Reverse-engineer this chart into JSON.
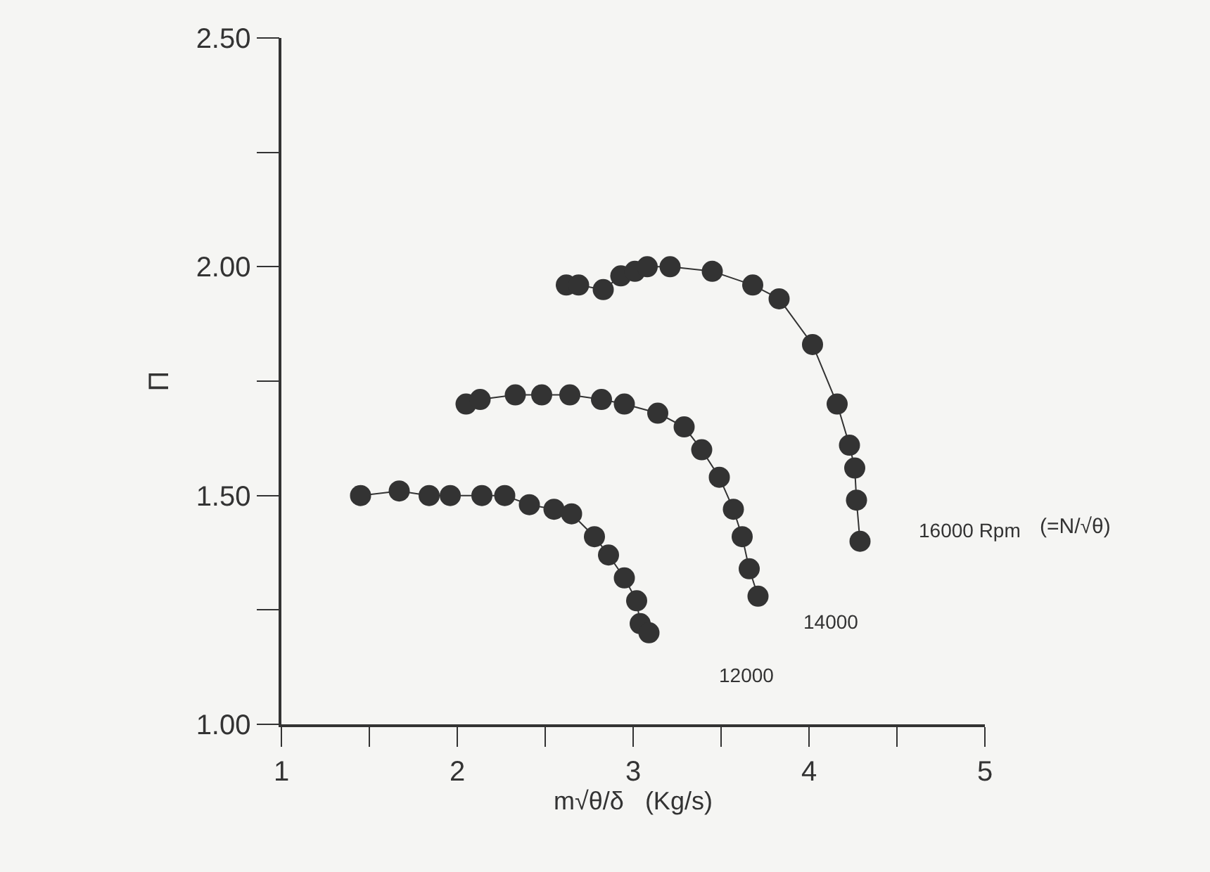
{
  "chart_data": {
    "type": "line",
    "xlabel": "m√θ/δ   (Kg/s)",
    "ylabel": "Π",
    "xlim": [
      1,
      5
    ],
    "ylim": [
      1.0,
      2.5
    ],
    "xticks": [
      1,
      {
        "value": 1.5,
        "label": null
      },
      2,
      {
        "value": 2.5,
        "label": null
      },
      3,
      {
        "value": 3.5,
        "label": null
      },
      4,
      {
        "value": 4.5,
        "label": null
      },
      5
    ],
    "yticks": [
      {
        "value": 1.0,
        "label": "1.00"
      },
      {
        "value": 1.25,
        "label": null
      },
      {
        "value": 1.5,
        "label": "1.50"
      },
      {
        "value": 1.75,
        "label": null
      },
      {
        "value": 2.0,
        "label": "2.00"
      },
      {
        "value": 2.25,
        "label": null
      },
      {
        "value": 2.5,
        "label": "2.50"
      }
    ],
    "marker": "circle",
    "line_style": "solid",
    "grid": false,
    "legend": false,
    "series": [
      {
        "name": "12000",
        "color": "#333333",
        "x": [
          1.45,
          1.67,
          1.84,
          1.96,
          2.14,
          2.27,
          2.41,
          2.55,
          2.65,
          2.78,
          2.86,
          2.95,
          3.02,
          3.04,
          3.09
        ],
        "values": [
          1.5,
          1.51,
          1.5,
          1.5,
          1.5,
          1.5,
          1.48,
          1.47,
          1.46,
          1.41,
          1.37,
          1.32,
          1.27,
          1.22,
          1.2
        ]
      },
      {
        "name": "14000",
        "color": "#333333",
        "x": [
          2.05,
          2.13,
          2.33,
          2.48,
          2.64,
          2.82,
          2.95,
          3.14,
          3.29,
          3.39,
          3.49,
          3.57,
          3.62,
          3.66,
          3.71
        ],
        "values": [
          1.7,
          1.71,
          1.72,
          1.72,
          1.72,
          1.71,
          1.7,
          1.68,
          1.65,
          1.6,
          1.54,
          1.47,
          1.41,
          1.34,
          1.28
        ]
      },
      {
        "name": "16000 Rpm",
        "color": "#333333",
        "x": [
          2.62,
          2.69,
          2.83,
          2.93,
          3.01,
          3.08,
          3.21,
          3.45,
          3.68,
          3.83,
          4.02,
          4.16,
          4.23,
          4.26,
          4.27,
          4.29
        ],
        "values": [
          1.96,
          1.96,
          1.95,
          1.98,
          1.99,
          2.0,
          2.0,
          1.99,
          1.96,
          1.93,
          1.83,
          1.7,
          1.61,
          1.56,
          1.49,
          1.4
        ]
      }
    ],
    "annotations": [
      "(=N/√θ)"
    ]
  }
}
